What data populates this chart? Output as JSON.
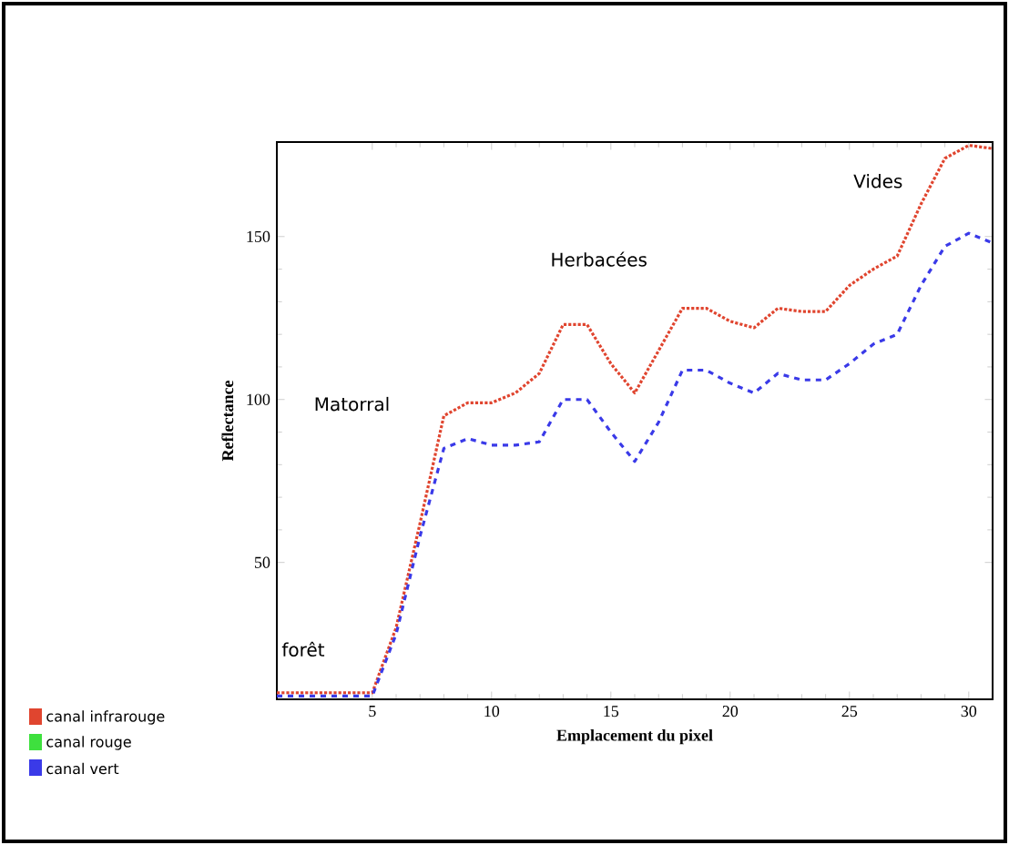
{
  "chart_data": {
    "type": "line",
    "xlabel": "Emplacement du pixel",
    "ylabel": "Reflectance",
    "x": [
      1,
      2,
      3,
      4,
      5,
      6,
      7,
      8,
      9,
      10,
      11,
      12,
      13,
      14,
      15,
      16,
      17,
      18,
      19,
      20,
      21,
      22,
      23,
      24,
      25,
      26,
      27,
      28,
      29,
      30,
      31
    ],
    "series": [
      {
        "name": "canal infrarouge",
        "color": "#e0452f",
        "line_style": "dotted",
        "values": [
          10,
          10,
          10,
          10,
          10,
          30,
          62,
          95,
          99,
          99,
          102,
          108,
          123,
          123,
          111,
          102,
          115,
          128,
          128,
          124,
          122,
          128,
          127,
          127,
          135,
          140,
          144,
          160,
          174,
          178,
          177
        ]
      },
      {
        "name": "canal rouge",
        "color": "#3ee03e",
        "line_style": "dotted",
        "values": [
          null,
          null,
          null,
          null,
          null,
          null,
          null,
          null,
          null,
          null,
          null,
          null,
          null,
          null,
          null,
          null,
          null,
          null,
          null,
          null,
          null,
          null,
          null,
          null,
          null,
          null,
          null,
          null,
          null,
          null,
          null
        ]
      },
      {
        "name": "canal vert",
        "color": "#3a3ae8",
        "line_style": "dashed",
        "values": [
          9,
          9,
          9,
          9,
          9,
          28,
          58,
          85,
          88,
          86,
          86,
          87,
          100,
          100,
          90,
          81,
          93,
          109,
          109,
          105,
          102,
          108,
          106,
          106,
          111,
          117,
          120,
          135,
          147,
          151,
          148
        ]
      }
    ],
    "xlim": [
      1,
      31
    ],
    "ylim": [
      8,
      179
    ],
    "xticks": [
      5,
      10,
      15,
      20,
      25,
      30
    ],
    "yticks": [
      50,
      100,
      150
    ],
    "annotations": [
      "forêt",
      "Matorral",
      "Herbacées",
      "Vides"
    ],
    "legend": "bottom left",
    "grid": false,
    "marker": "none"
  }
}
